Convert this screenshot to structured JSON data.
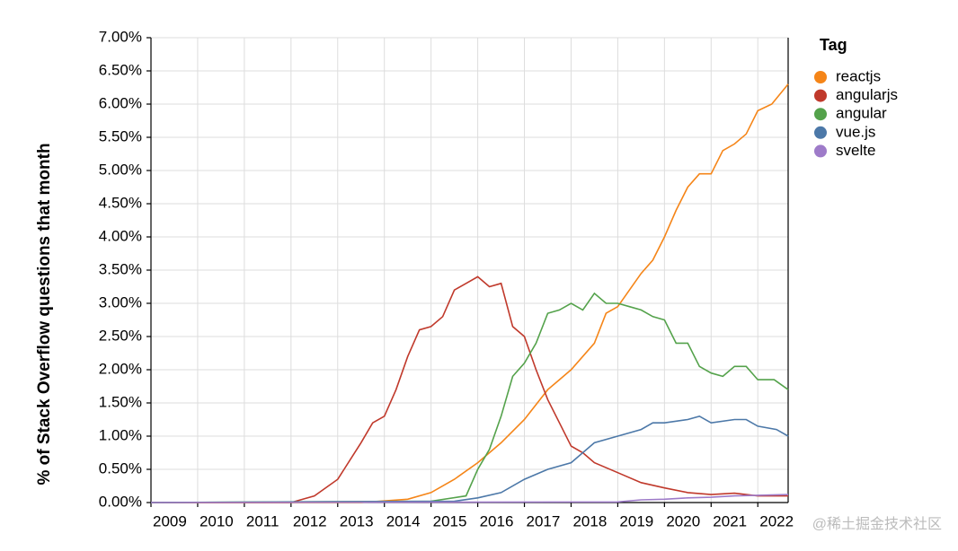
{
  "chart_data": {
    "type": "line",
    "y_label": "% of Stack Overflow questions that month",
    "legend_title": "Tag",
    "legend": "right",
    "grid": true,
    "watermark": "@稀土掘金技术社区",
    "xlim": [
      2009,
      2022.65
    ],
    "xticks": [
      2009,
      2010,
      2011,
      2012,
      2013,
      2014,
      2015,
      2016,
      2017,
      2018,
      2019,
      2020,
      2021,
      2022
    ],
    "ylim": [
      0,
      7
    ],
    "yticks": [
      {
        "value": 0,
        "label": "0.00%"
      },
      {
        "value": 0.5,
        "label": "0.50%"
      },
      {
        "value": 1,
        "label": "1.00%"
      },
      {
        "value": 1.5,
        "label": "1.50%"
      },
      {
        "value": 2,
        "label": "2.00%"
      },
      {
        "value": 2.5,
        "label": "2.50%"
      },
      {
        "value": 3,
        "label": "3.00%"
      },
      {
        "value": 3.5,
        "label": "3.50%"
      },
      {
        "value": 4,
        "label": "4.00%"
      },
      {
        "value": 4.5,
        "label": "4.50%"
      },
      {
        "value": 5,
        "label": "5.00%"
      },
      {
        "value": 5.5,
        "label": "5.50%"
      },
      {
        "value": 6,
        "label": "6.00%"
      },
      {
        "value": 6.5,
        "label": "6.50%"
      },
      {
        "value": 7,
        "label": "7.00%"
      }
    ],
    "series": [
      {
        "name": "reactjs",
        "color": "#f58518",
        "x": [
          2009,
          2013.5,
          2014.5,
          2015,
          2015.5,
          2016,
          2016.5,
          2017,
          2017.5,
          2017.75,
          2018,
          2018.5,
          2018.75,
          2019,
          2019.25,
          2019.5,
          2019.75,
          2020,
          2020.25,
          2020.5,
          2020.75,
          2021,
          2021.25,
          2021.5,
          2021.75,
          2022,
          2022.3,
          2022.65
        ],
        "values": [
          0,
          0,
          0.05,
          0.15,
          0.35,
          0.6,
          0.9,
          1.25,
          1.7,
          1.85,
          2.0,
          2.4,
          2.85,
          2.95,
          3.2,
          3.45,
          3.65,
          4.0,
          4.4,
          4.75,
          4.95,
          4.95,
          5.3,
          5.4,
          5.55,
          5.9,
          6.0,
          6.3
        ]
      },
      {
        "name": "angularjs",
        "color": "#c0392b",
        "x": [
          2009,
          2012,
          2012.5,
          2013,
          2013.5,
          2013.75,
          2014,
          2014.25,
          2014.5,
          2014.75,
          2015,
          2015.25,
          2015.5,
          2015.75,
          2016,
          2016.25,
          2016.5,
          2016.75,
          2017,
          2017.25,
          2017.5,
          2017.75,
          2018,
          2018.25,
          2018.5,
          2019,
          2019.5,
          2020,
          2020.5,
          2021,
          2021.5,
          2022,
          2022.65
        ],
        "values": [
          0,
          0,
          0.1,
          0.35,
          0.9,
          1.2,
          1.3,
          1.7,
          2.2,
          2.6,
          2.65,
          2.8,
          3.2,
          3.3,
          3.4,
          3.25,
          3.3,
          2.65,
          2.5,
          2.0,
          1.55,
          1.2,
          0.85,
          0.75,
          0.6,
          0.45,
          0.3,
          0.22,
          0.15,
          0.12,
          0.14,
          0.1,
          0.1
        ]
      },
      {
        "name": "angular",
        "color": "#54a24b",
        "x": [
          2009,
          2015,
          2015.75,
          2016,
          2016.25,
          2016.5,
          2016.75,
          2017,
          2017.25,
          2017.5,
          2017.75,
          2018,
          2018.25,
          2018.5,
          2018.75,
          2019,
          2019.25,
          2019.5,
          2019.75,
          2020,
          2020.25,
          2020.5,
          2020.75,
          2021,
          2021.25,
          2021.5,
          2021.75,
          2022,
          2022.35,
          2022.65
        ],
        "values": [
          0,
          0.02,
          0.1,
          0.5,
          0.8,
          1.3,
          1.9,
          2.1,
          2.4,
          2.85,
          2.9,
          3.0,
          2.9,
          3.15,
          3.0,
          3.0,
          2.95,
          2.9,
          2.8,
          2.75,
          2.4,
          2.4,
          2.05,
          1.95,
          1.9,
          2.05,
          2.05,
          1.85,
          1.85,
          1.7
        ]
      },
      {
        "name": "vue.js",
        "color": "#4c78a8",
        "x": [
          2009,
          2015.5,
          2016,
          2016.5,
          2017,
          2017.5,
          2018,
          2018.5,
          2019,
          2019.5,
          2019.75,
          2020,
          2020.5,
          2020.75,
          2021,
          2021.5,
          2021.75,
          2022,
          2022.4,
          2022.65
        ],
        "values": [
          0,
          0.02,
          0.07,
          0.15,
          0.35,
          0.5,
          0.6,
          0.9,
          1.0,
          1.1,
          1.2,
          1.2,
          1.25,
          1.3,
          1.2,
          1.25,
          1.25,
          1.15,
          1.1,
          1.0
        ]
      },
      {
        "name": "svelte",
        "color": "#9e7bc9",
        "x": [
          2009,
          2019,
          2019.5,
          2020,
          2020.5,
          2021,
          2021.5,
          2022,
          2022.65
        ],
        "values": [
          0,
          0.01,
          0.04,
          0.05,
          0.07,
          0.08,
          0.1,
          0.11,
          0.12
        ]
      }
    ]
  }
}
